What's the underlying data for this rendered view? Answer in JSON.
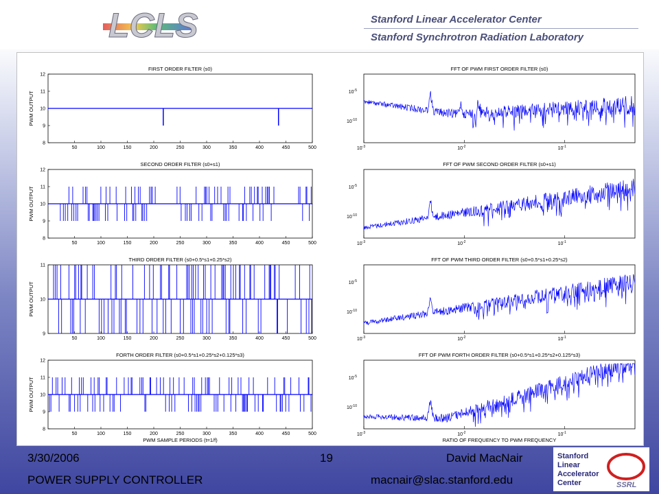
{
  "header": {
    "logo_text": "LCLS",
    "org_line1": "Stanford Linear Accelerator Center",
    "org_line2": "Stanford Synchrotron Radiation Laboratory"
  },
  "footer": {
    "date": "3/30/2006",
    "page_number": "19",
    "author": "David MacNair",
    "title": "POWER SUPPLY CONTROLLER",
    "email": "macnair@slac.stanford.edu",
    "slac_logo_lines": [
      "Stanford",
      "Linear",
      "Accelerator",
      "Center"
    ],
    "ssrl_text": "SSRL"
  },
  "chart_data": [
    {
      "type": "line",
      "title": "FIRST ORDER FILTER (s0)",
      "ylabel": "PWM OUTPUT",
      "xlabel": "",
      "xlim": [
        0,
        500
      ],
      "ylim": [
        8,
        12
      ],
      "xticks": [
        50,
        100,
        150,
        200,
        250,
        300,
        350,
        400,
        450,
        500
      ],
      "yticks": [
        8,
        9,
        10,
        11,
        12
      ],
      "series": [
        {
          "values_baseline": 10,
          "spikes": [
            [
              218,
              9
            ],
            [
              436,
              9
            ]
          ]
        }
      ],
      "color": "#0000ff"
    },
    {
      "type": "line",
      "title": "SECOND ORDER FILTER (s0+s1)",
      "ylabel": "PWM OUTPUT",
      "xlabel": "",
      "xlim": [
        0,
        500
      ],
      "ylim": [
        8,
        12
      ],
      "xticks": [
        50,
        100,
        150,
        200,
        250,
        300,
        350,
        400,
        450,
        500
      ],
      "yticks": [
        8,
        9,
        10,
        11,
        12
      ],
      "series": [
        {
          "values_baseline": 10,
          "amplitude": 1,
          "active_ranges": [
            [
              15,
              210
            ],
            [
              240,
              430
            ],
            [
              470,
              500
            ]
          ]
        }
      ],
      "color": "#0000ff"
    },
    {
      "type": "line",
      "title": "THIRD ORDER FILTER (s0+0.5*s1+0.25*s2)",
      "ylabel": "PWM OUTPUT",
      "xlabel": "",
      "xlim": [
        0,
        500
      ],
      "ylim": [
        9,
        11
      ],
      "xticks": [
        50,
        100,
        150,
        200,
        250,
        300,
        350,
        400,
        450,
        500
      ],
      "yticks": [
        9,
        10,
        11
      ],
      "series": [
        {
          "values_baseline": 10,
          "amplitude": 1,
          "active_ranges": [
            [
              0,
              500
            ]
          ]
        }
      ],
      "color": "#0000ff"
    },
    {
      "type": "line",
      "title": "FORTH ORDER FILTER (s0+0.5*s1+0.25*s2+0.125*s3)",
      "ylabel": "PWM OUTPUT",
      "xlabel": "PWM SAMPLE PERIODS (t=1/f)",
      "xlim": [
        0,
        500
      ],
      "ylim": [
        8,
        12
      ],
      "xticks": [
        50,
        100,
        150,
        200,
        250,
        300,
        350,
        400,
        450,
        500
      ],
      "yticks": [
        8,
        9,
        10,
        11,
        12
      ],
      "series": [
        {
          "values_baseline": 10,
          "amplitude": 1,
          "active_ranges": [
            [
              0,
              500
            ]
          ]
        }
      ],
      "color": "#0000ff"
    },
    {
      "type": "line",
      "title": "FFT OF PWM FIRST ORDER FILTER (s0)",
      "xlabel": "",
      "xscale": "log",
      "yscale": "log",
      "xlim": [
        0.001,
        0.5
      ],
      "xticks": [
        "10-3",
        "10-2",
        "10-1"
      ],
      "yticks": [
        "10-5",
        "10-10"
      ],
      "series": [
        {
          "trend": "flat-high",
          "peaks": [
            0.0046,
            0.0092,
            0.0138
          ]
        }
      ],
      "color": "#0000ff"
    },
    {
      "type": "line",
      "title": "FFT OF PWM SECOND ORDER FILTER (s0+s1)",
      "xlabel": "",
      "xscale": "log",
      "yscale": "log",
      "xlim": [
        0.001,
        0.5
      ],
      "xticks": [
        "10-3",
        "10-2",
        "10-1"
      ],
      "yticks": [
        "10-5",
        "10-10"
      ],
      "series": [
        {
          "trend": "rising",
          "peaks": [
            0.0046
          ]
        }
      ],
      "color": "#0000ff"
    },
    {
      "type": "line",
      "title": "FFT OF PWM THIRD ORDER FILTER (s0+0.5*s1+0.25*s2)",
      "xlabel": "",
      "xscale": "log",
      "yscale": "log",
      "xlim": [
        0.001,
        0.5
      ],
      "xticks": [
        "10-3",
        "10-2",
        "10-1"
      ],
      "yticks": [
        "10-5",
        "10-10"
      ],
      "series": [
        {
          "trend": "rising",
          "peaks": [
            0.0046
          ]
        }
      ],
      "color": "#0000ff"
    },
    {
      "type": "line",
      "title": "FFT OF PWM FORTH ORDER FILTER (s0+0.5*s1+0.25*s2+0.125*s3)",
      "xlabel": "RATIO OF FREQUENCY TO PWM FREQUENCY",
      "xscale": "log",
      "yscale": "log",
      "xlim": [
        0.001,
        0.5
      ],
      "xticks": [
        "10-3",
        "10-2",
        "10-1"
      ],
      "yticks": [
        "10-5",
        "10-10"
      ],
      "series": [
        {
          "trend": "rising-steep",
          "peaks": [
            0.0046
          ]
        }
      ],
      "color": "#0000ff"
    }
  ]
}
